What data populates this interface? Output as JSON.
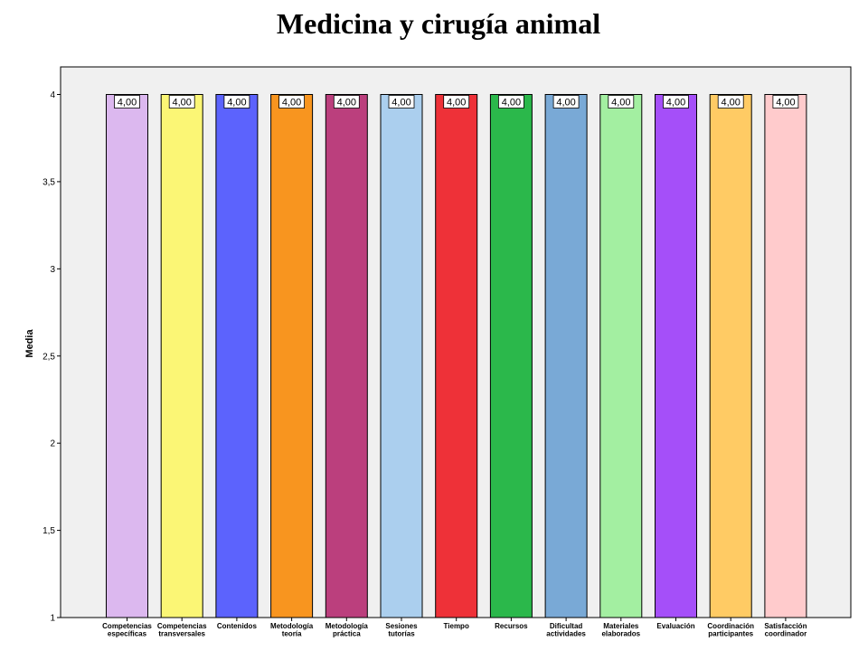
{
  "chart_data": {
    "type": "bar",
    "title": "Medicina y cirugía animal",
    "xlabel": "",
    "ylabel": "Media",
    "ylim": [
      1,
      4
    ],
    "y_ticks": [
      "1",
      "1,5",
      "2",
      "2,5",
      "3",
      "3,5",
      "4"
    ],
    "y_tick_values": [
      1,
      1.5,
      2,
      2.5,
      3,
      3.5,
      4
    ],
    "categories": [
      [
        "Competencias",
        "específicas"
      ],
      [
        "Competencias",
        "transversales"
      ],
      [
        "Contenidos"
      ],
      [
        "Metodología",
        "teoría"
      ],
      [
        "Metodología",
        "práctica"
      ],
      [
        "Sesiones",
        "tutorías"
      ],
      [
        "Tiempo"
      ],
      [
        "Recursos"
      ],
      [
        "Dificultad",
        "actividades"
      ],
      [
        "Materiales",
        "elaborados"
      ],
      [
        "Evaluación"
      ],
      [
        "Coordinación",
        "participantes"
      ],
      [
        "Satisfacción",
        "coordinador"
      ]
    ],
    "values": [
      4,
      4,
      4,
      4,
      4,
      4,
      4,
      4,
      4,
      4,
      4,
      4,
      4
    ],
    "value_labels": [
      "4,00",
      "4,00",
      "4,00",
      "4,00",
      "4,00",
      "4,00",
      "4,00",
      "4,00",
      "4,00",
      "4,00",
      "4,00",
      "4,00",
      "4,00"
    ],
    "colors": [
      "#dcb8ef",
      "#fbf675",
      "#5c63fd",
      "#f8951f",
      "#bb3f7d",
      "#abcfee",
      "#ee3138",
      "#2bb84b",
      "#79a9d6",
      "#a3efa1",
      "#a54ff9",
      "#ffcb64",
      "#ffcbcc"
    ],
    "plot_background": "#f0f0f0",
    "grid": false,
    "legend": "none"
  }
}
